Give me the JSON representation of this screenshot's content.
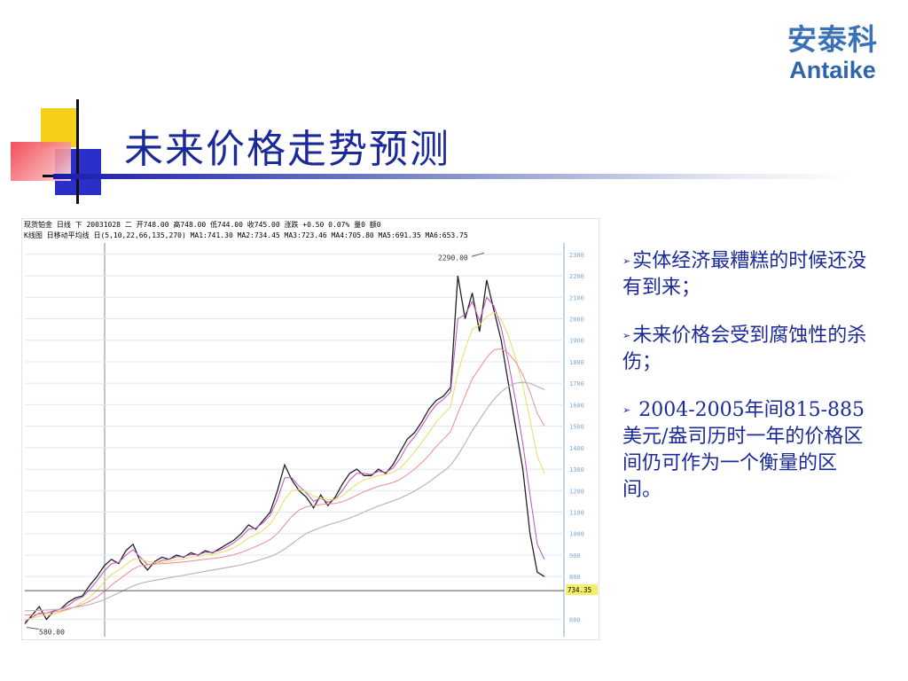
{
  "slide": {
    "title": "未来价格走势预测",
    "logo_cn": "安泰科",
    "logo_en": "Antaike",
    "bullets": [
      "实体经济最糟糕的时候还没有到来；",
      "未来价格会受到腐蚀性的杀伤；",
      " 2004-2005年间815-885美元/盎司历时一年的价格区间仍可作为一个衡量的区间。"
    ],
    "bullet_marker": "➢"
  },
  "chart_data": {
    "type": "line",
    "header_line1": "现货铂金  日线  下  20031028  二  开748.00 高748.00 低744.00 收745.00 涨跌  +0.50  0.07% 量0 额0",
    "header_line2": "K线图 日移动平均线 日(5,10,22,66,135,270) MA1:741.30 MA2:734.45 MA3:723.46 MA4:705.80 MA5:691.35 MA6:653.75",
    "yticks": [
      2300,
      2200,
      2100,
      2000,
      1900,
      1800,
      1700,
      1600,
      1500,
      1400,
      1300,
      1200,
      1100,
      1000,
      900,
      800,
      600
    ],
    "ylim": [
      520,
      2320
    ],
    "high_label": "2290.00",
    "low_label": "580.00",
    "current_label": "734.35",
    "current_value": 734.35,
    "series": [
      {
        "values": [
          580,
          620,
          660,
          600,
          640,
          650,
          680,
          700,
          710,
          760,
          800,
          850,
          880,
          860,
          920,
          950,
          870,
          830,
          870,
          890,
          880,
          900,
          890,
          910,
          900,
          920,
          910,
          930,
          950,
          970,
          1000,
          1040,
          1020,
          1060,
          1100,
          1200,
          1320,
          1250,
          1200,
          1170,
          1120,
          1180,
          1130,
          1170,
          1230,
          1280,
          1300,
          1270,
          1270,
          1300,
          1280,
          1320,
          1380,
          1440,
          1470,
          1520,
          1580,
          1620,
          1640,
          1680,
          2200,
          2000,
          2120,
          1940,
          2180,
          2040,
          1900,
          1700,
          1500,
          1300,
          1000,
          820,
          800
        ]
      },
      {
        "values": [
          590,
          610,
          630,
          630,
          640,
          650,
          665,
          690,
          705,
          740,
          780,
          825,
          860,
          865,
          900,
          925,
          890,
          855,
          860,
          875,
          880,
          892,
          893,
          902,
          902,
          912,
          912,
          922,
          938,
          958,
          985,
          1020,
          1025,
          1050,
          1085,
          1160,
          1260,
          1260,
          1220,
          1190,
          1150,
          1165,
          1145,
          1160,
          1200,
          1250,
          1280,
          1280,
          1275,
          1290,
          1285,
          1305,
          1350,
          1410,
          1450,
          1500,
          1555,
          1600,
          1625,
          1660,
          2000,
          2020,
          2080,
          1990,
          2100,
          2060,
          1960,
          1800,
          1620,
          1420,
          1180,
          950,
          880
        ]
      },
      {
        "values": [
          600,
          605,
          615,
          620,
          625,
          635,
          645,
          660,
          680,
          705,
          735,
          775,
          810,
          830,
          855,
          880,
          880,
          870,
          865,
          865,
          870,
          878,
          882,
          890,
          894,
          900,
          904,
          910,
          920,
          935,
          955,
          980,
          995,
          1015,
          1045,
          1095,
          1160,
          1200,
          1205,
          1195,
          1175,
          1165,
          1158,
          1160,
          1175,
          1205,
          1230,
          1250,
          1260,
          1270,
          1275,
          1285,
          1305,
          1340,
          1380,
          1425,
          1470,
          1520,
          1555,
          1590,
          1750,
          1860,
          1950,
          1970,
          2010,
          2030,
          2000,
          1920,
          1820,
          1690,
          1530,
          1360,
          1280
        ]
      },
      {
        "values": [
          620,
          622,
          625,
          630,
          635,
          640,
          648,
          658,
          670,
          685,
          705,
          730,
          760,
          785,
          810,
          835,
          850,
          855,
          858,
          860,
          862,
          865,
          868,
          872,
          876,
          880,
          884,
          888,
          894,
          902,
          912,
          926,
          940,
          955,
          972,
          1000,
          1040,
          1080,
          1110,
          1125,
          1130,
          1135,
          1138,
          1140,
          1148,
          1162,
          1178,
          1195,
          1208,
          1220,
          1228,
          1238,
          1252,
          1275,
          1300,
          1330,
          1365,
          1405,
          1440,
          1475,
          1560,
          1640,
          1720,
          1770,
          1820,
          1855,
          1860,
          1840,
          1800,
          1740,
          1660,
          1560,
          1500
        ]
      },
      {
        "values": [
          640,
          641,
          642,
          644,
          646,
          648,
          652,
          657,
          663,
          670,
          680,
          692,
          708,
          724,
          740,
          756,
          768,
          776,
          782,
          788,
          794,
          800,
          806,
          812,
          818,
          824,
          830,
          836,
          842,
          848,
          855,
          863,
          872,
          882,
          893,
          908,
          928,
          952,
          978,
          1000,
          1015,
          1028,
          1040,
          1050,
          1060,
          1072,
          1085,
          1100,
          1115,
          1128,
          1140,
          1152,
          1165,
          1180,
          1198,
          1218,
          1240,
          1265,
          1290,
          1318,
          1365,
          1420,
          1480,
          1530,
          1580,
          1625,
          1660,
          1685,
          1700,
          1705,
          1700,
          1685,
          1670
        ]
      }
    ]
  }
}
